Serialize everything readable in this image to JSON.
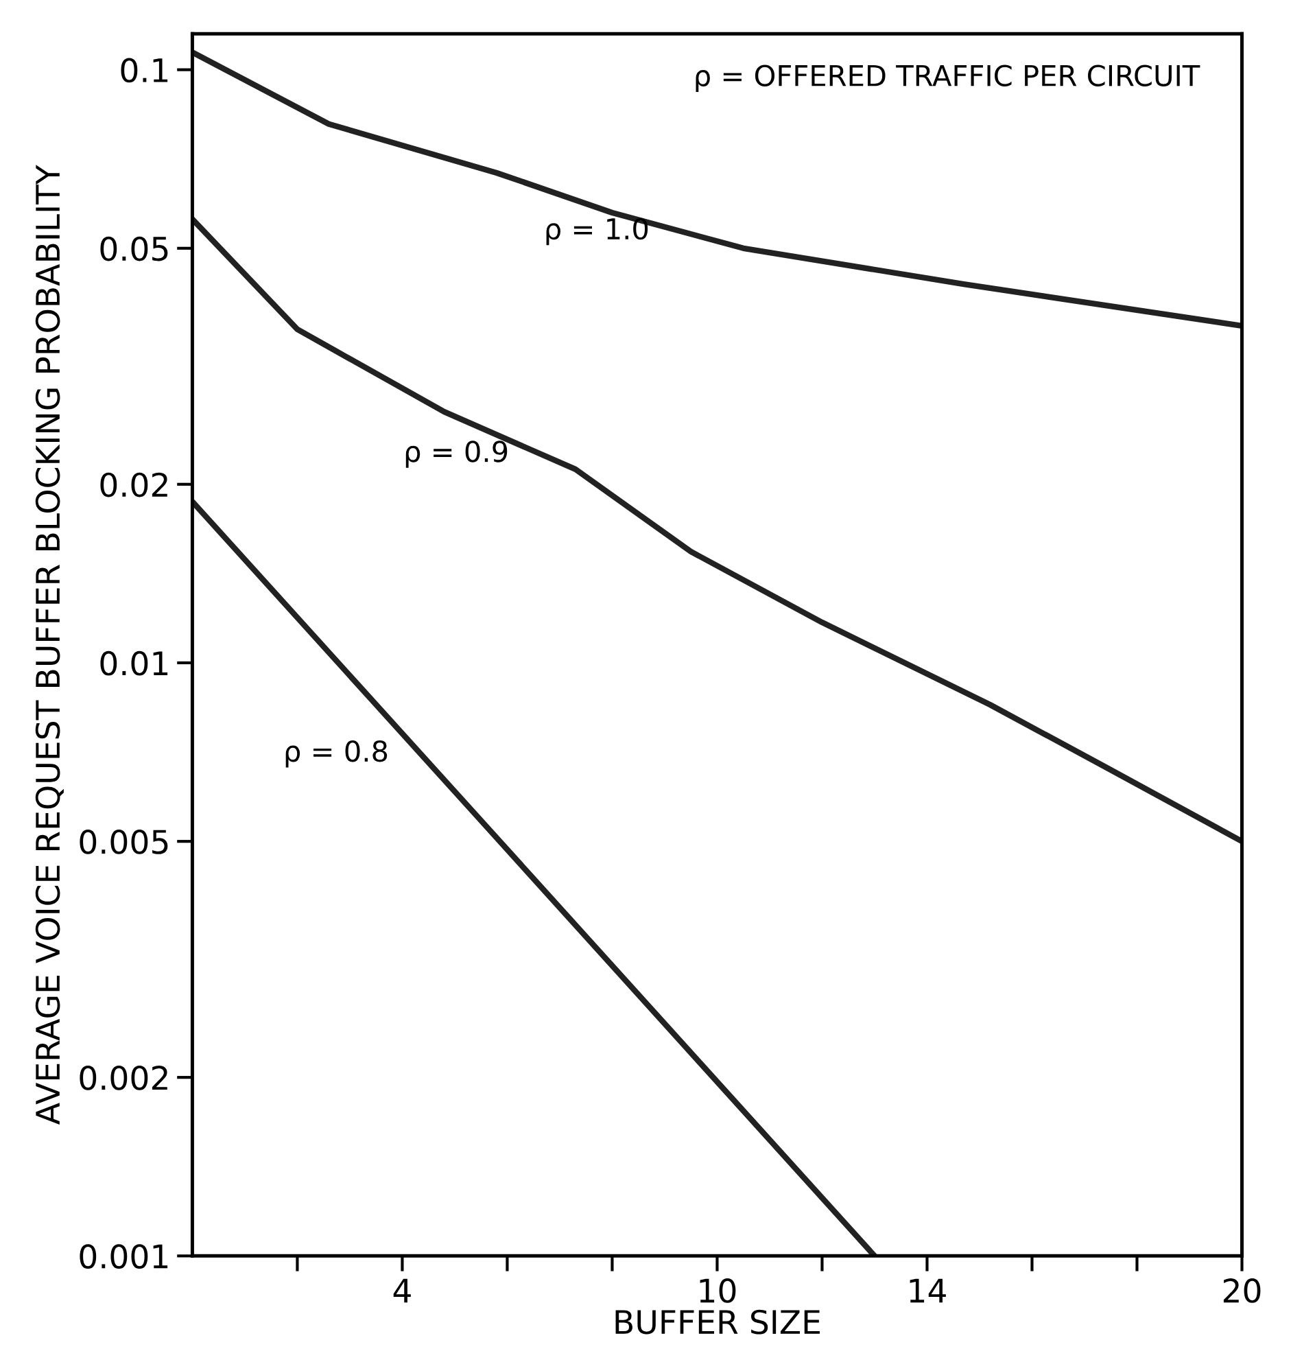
{
  "chart_data": {
    "type": "line",
    "xlabel": "BUFFER SIZE",
    "ylabel": "AVERAGE VOICE REQUEST BUFFER BLOCKING PROBABILITY",
    "annotations": [
      "ρ = OFFERED TRAFFIC PER CIRCUIT"
    ],
    "log": "y",
    "xlim": [
      0,
      20
    ],
    "xticks": [
      {
        "value": 2,
        "label": null
      },
      4,
      {
        "value": 6,
        "label": null
      },
      {
        "value": 8,
        "label": null
      },
      10,
      {
        "value": 12,
        "label": null
      },
      14,
      {
        "value": 16,
        "label": null
      },
      {
        "value": 18,
        "label": null
      },
      20
    ],
    "ylim": [
      0.001,
      0.115
    ],
    "yticks": [
      0.001,
      0.002,
      0.005,
      0.01,
      0.02,
      0.05,
      0.1
    ],
    "grid": false,
    "legend": false,
    "marker": "none",
    "line_style": "solid",
    "series": [
      {
        "name": "ρ = 1.0",
        "color": "#222222",
        "x": [
          0,
          2.6,
          5.8,
          8,
          10.5,
          14.7,
          20
        ],
        "values": [
          0.107,
          0.081,
          0.067,
          0.0574,
          0.05,
          0.0435,
          0.037
        ]
      },
      {
        "name": "ρ = 0.9",
        "color": "#222222",
        "x": [
          0,
          2,
          4.8,
          7.3,
          9.5,
          12.0,
          15.2,
          17.5,
          20
        ],
        "values": [
          0.056,
          0.0365,
          0.0265,
          0.0212,
          0.0154,
          0.0117,
          0.0085,
          0.0066,
          0.005
        ]
      },
      {
        "name": "ρ = 0.8",
        "color": "#222222",
        "x": [
          0,
          5.6,
          13.0
        ],
        "values": [
          0.0187,
          0.0053,
          0.001
        ]
      }
    ]
  }
}
